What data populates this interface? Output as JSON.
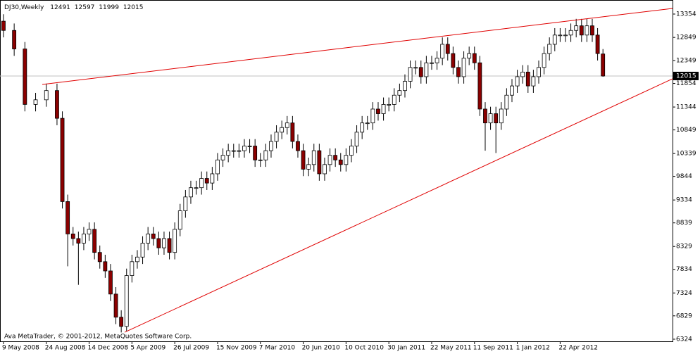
{
  "chart_data": {
    "type": "candlestick",
    "title": "DJ30,Weekly",
    "footer": "Ava MetaTrader, © 2001-2012, MetaQuotes Software Corp.",
    "x": [
      0,
      4,
      8,
      12,
      16,
      20,
      22,
      24,
      26,
      28,
      30,
      32,
      34,
      36,
      38,
      40,
      42,
      44,
      46,
      48,
      50,
      52,
      54,
      56,
      58,
      60,
      62,
      64,
      66,
      68,
      70,
      72,
      74,
      76,
      78,
      80,
      82,
      84,
      86,
      88,
      90,
      92,
      94,
      96,
      98,
      100,
      102,
      104,
      106,
      108,
      110,
      112,
      114,
      116,
      118,
      120,
      122,
      124,
      126,
      128,
      130,
      132,
      134,
      136,
      138,
      140,
      142,
      144,
      146,
      148,
      150,
      152,
      154,
      156,
      158,
      160,
      162,
      164,
      166,
      168,
      170,
      172,
      174,
      176,
      178,
      180,
      182,
      184,
      186,
      188,
      190,
      192,
      194,
      196,
      198,
      200,
      202,
      204,
      206,
      208,
      210,
      212,
      214,
      216,
      218,
      220,
      222,
      224
    ],
    "open": [
      13200,
      13000,
      12600,
      11400,
      11500,
      11700,
      11100,
      9300,
      8600,
      8500,
      8400,
      8600,
      8700,
      8200,
      8000,
      7800,
      7300,
      6800,
      6600,
      7700,
      8000,
      8100,
      8400,
      8600,
      8500,
      8300,
      8500,
      8200,
      8700,
      9100,
      9400,
      9600,
      9600,
      9800,
      9700,
      9900,
      10200,
      10300,
      10400,
      10400,
      10400,
      10500,
      10500,
      10200,
      10200,
      10400,
      10600,
      10800,
      10900,
      11000,
      10600,
      10400,
      10000,
      10100,
      10400,
      9900,
      10100,
      10300,
      10200,
      10100,
      10300,
      10500,
      10800,
      11000,
      11000,
      11300,
      11200,
      11400,
      11400,
      11600,
      11700,
      11900,
      12200,
      12200,
      12000,
      12300,
      12300,
      12400,
      12700,
      12500,
      12200,
      12000,
      12400,
      12500,
      12300,
      11300,
      11000,
      11200,
      11000,
      11300,
      11600,
      11800,
      12000,
      12100,
      11800,
      12000,
      12200,
      12500,
      12700,
      12900,
      12900,
      12900,
      13000,
      13100,
      12900,
      13100,
      12900,
      12491
    ],
    "high": [
      13350,
      13150,
      12750,
      11650,
      11850,
      11850,
      11250,
      9450,
      8750,
      8650,
      8750,
      8850,
      8850,
      8350,
      8150,
      7950,
      7450,
      6950,
      7850,
      8150,
      8250,
      8550,
      8750,
      8750,
      8650,
      8650,
      8650,
      8850,
      9250,
      9550,
      9750,
      9750,
      9950,
      9950,
      10050,
      10350,
      10450,
      10550,
      10550,
      10550,
      10650,
      10650,
      10650,
      10350,
      10550,
      10750,
      10950,
      11050,
      11150,
      11150,
      10750,
      10550,
      10250,
      10550,
      10550,
      10250,
      10450,
      10450,
      10350,
      10450,
      10650,
      10950,
      11150,
      11150,
      11450,
      11450,
      11550,
      11550,
      11750,
      11850,
      12050,
      12350,
      12350,
      12350,
      12450,
      12450,
      12550,
      12850,
      12850,
      12650,
      12350,
      12550,
      12650,
      12650,
      12450,
      11450,
      11350,
      11350,
      11450,
      11750,
      11950,
      12150,
      12250,
      12250,
      12150,
      12350,
      12650,
      12850,
      13050,
      13050,
      13050,
      13150,
      13250,
      13250,
      13250,
      13250,
      13050,
      12597
    ],
    "low": [
      12850,
      12450,
      11250,
      11250,
      11350,
      10950,
      9150,
      7900,
      8350,
      7500,
      8250,
      8450,
      8050,
      7850,
      7650,
      7150,
      6650,
      6470,
      6500,
      7550,
      7850,
      7950,
      8250,
      8350,
      8150,
      8150,
      8050,
      8050,
      8550,
      8950,
      9250,
      9450,
      9450,
      9550,
      9550,
      9750,
      10050,
      10150,
      10250,
      10250,
      10250,
      10350,
      10050,
      10050,
      10050,
      10250,
      10450,
      10650,
      10750,
      10450,
      10250,
      9850,
      9850,
      9950,
      9750,
      9750,
      9950,
      10050,
      9950,
      9950,
      10150,
      10350,
      10650,
      10850,
      10850,
      11050,
      11050,
      11250,
      11250,
      11450,
      11550,
      11750,
      12050,
      11850,
      11850,
      12150,
      12150,
      12250,
      12350,
      12050,
      11850,
      11850,
      12250,
      12150,
      11150,
      10400,
      10850,
      10350,
      10850,
      11150,
      11450,
      11650,
      11850,
      11650,
      11650,
      11850,
      12050,
      12350,
      12550,
      12750,
      12750,
      12750,
      12850,
      12750,
      12750,
      12750,
      12350,
      11999
    ],
    "close": [
      13000,
      12600,
      11400,
      11500,
      11700,
      11100,
      9300,
      8600,
      8500,
      8400,
      8600,
      8700,
      8200,
      8000,
      7800,
      7300,
      6800,
      6600,
      7700,
      8000,
      8100,
      8400,
      8600,
      8500,
      8300,
      8500,
      8200,
      8700,
      9100,
      9400,
      9600,
      9600,
      9800,
      9700,
      9900,
      10200,
      10300,
      10400,
      10400,
      10400,
      10500,
      10500,
      10200,
      10200,
      10400,
      10600,
      10800,
      10900,
      11000,
      10600,
      10400,
      10000,
      10100,
      10400,
      9900,
      10100,
      10300,
      10200,
      10100,
      10300,
      10500,
      10800,
      11000,
      11000,
      11300,
      11200,
      11400,
      11400,
      11600,
      11700,
      11900,
      12200,
      12200,
      12000,
      12300,
      12300,
      12400,
      12700,
      12500,
      12200,
      12000,
      12400,
      12500,
      12300,
      11300,
      11000,
      11200,
      11000,
      11300,
      11600,
      11800,
      12000,
      12100,
      11800,
      12000,
      12200,
      12500,
      12700,
      12900,
      12900,
      12900,
      13000,
      13100,
      12900,
      13100,
      12900,
      12500,
      12015
    ],
    "up_color": "#ffffff",
    "down_color": "#8b0000",
    "trendline_color": "#e00000",
    "trendlines": [
      {
        "x": [
          14.5,
          250
        ],
        "y": [
          11832,
          13476
        ]
      },
      {
        "x": [
          45.3,
          250
        ],
        "y": [
          6475,
          11954
        ]
      }
    ],
    "xlim": [
      -1.3,
      250
    ],
    "ylim": [
      6278,
      13658
    ],
    "yticks": [
      6324,
      6829,
      7324,
      7834,
      8329,
      8839,
      9334,
      9844,
      10339,
      10849,
      11344,
      11854,
      12349,
      12849,
      13354
    ],
    "xticks": [
      {
        "value": 0,
        "label": "9 May 2008"
      },
      {
        "value": 16,
        "label": "24 Aug 2008"
      },
      {
        "value": 32,
        "label": "14 Dec 2008"
      },
      {
        "value": 48,
        "label": "5 Apr 2009"
      },
      {
        "value": 64,
        "label": "26 Jul 2009"
      },
      {
        "value": 80,
        "label": "15 Nov 2009"
      },
      {
        "value": 96,
        "label": "7 Mar 2010"
      },
      {
        "value": 112,
        "label": "20 Jun 2010"
      },
      {
        "value": 128,
        "label": "10 Oct 2010"
      },
      {
        "value": 144,
        "label": "30 Jan 2011"
      },
      {
        "value": 160,
        "label": "22 May 2011"
      },
      {
        "value": 176,
        "label": "11 Sep 2011"
      },
      {
        "value": 192,
        "label": "1 Jan 2012"
      },
      {
        "value": 208,
        "label": "22 Apr 2012"
      }
    ]
  }
}
